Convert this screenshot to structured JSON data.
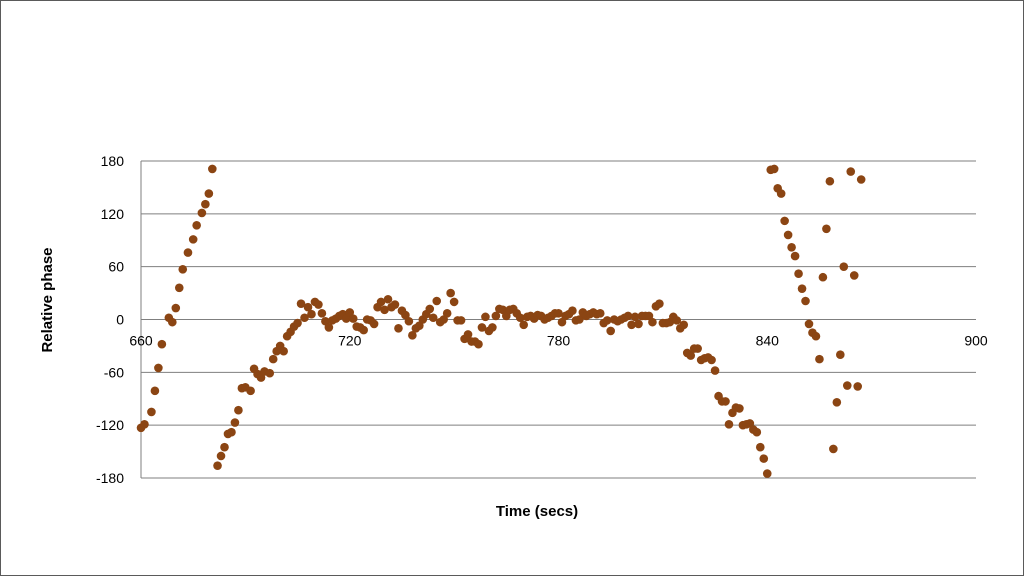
{
  "chart_data": {
    "type": "scatter",
    "xlabel": "Time (secs)",
    "ylabel": "Relative phase",
    "xlim": [
      660,
      900
    ],
    "ylim": [
      -180,
      180
    ],
    "x_ticks": [
      660,
      720,
      780,
      840,
      900
    ],
    "y_ticks": [
      180,
      120,
      60,
      0,
      -60,
      -120,
      -180
    ],
    "x_tick_labels": [
      "660",
      "720",
      "780",
      "840",
      "900"
    ],
    "y_tick_labels": [
      "180",
      "120",
      "60",
      "0",
      "-60",
      "-120",
      "-180"
    ],
    "grid": "horizontal",
    "marker_color": "#8B4513",
    "series": [
      {
        "points": [
          [
            660,
            -123
          ],
          [
            661,
            -119
          ],
          [
            663,
            -105
          ],
          [
            664,
            -81
          ],
          [
            665,
            -55
          ],
          [
            666,
            -28
          ],
          [
            668,
            2
          ],
          [
            669,
            -3
          ],
          [
            670,
            13
          ],
          [
            671,
            36
          ],
          [
            672,
            57
          ],
          [
            673.5,
            76
          ],
          [
            675,
            91
          ],
          [
            676,
            107
          ],
          [
            677.5,
            121
          ],
          [
            678.5,
            131
          ],
          [
            679.5,
            143
          ],
          [
            680.5,
            171
          ],
          [
            682,
            -166
          ],
          [
            683,
            -155
          ],
          [
            684,
            -145
          ],
          [
            685,
            -130
          ],
          [
            686,
            -128
          ],
          [
            687,
            -117
          ],
          [
            688,
            -103
          ],
          [
            689,
            -78
          ],
          [
            690,
            -77
          ],
          [
            691.5,
            -81
          ],
          [
            692.5,
            -56
          ],
          [
            693.5,
            -62
          ],
          [
            694.5,
            -66
          ],
          [
            695.5,
            -59
          ],
          [
            697,
            -61
          ],
          [
            698,
            -45
          ],
          [
            699,
            -36
          ],
          [
            700,
            -30
          ],
          [
            701,
            -36
          ],
          [
            702,
            -19
          ],
          [
            703,
            -14
          ],
          [
            704,
            -8
          ],
          [
            705,
            -4
          ],
          [
            706,
            18
          ],
          [
            707,
            2
          ],
          [
            708,
            14
          ],
          [
            709,
            6
          ],
          [
            710,
            20
          ],
          [
            711,
            17
          ],
          [
            712,
            7
          ],
          [
            713,
            -2
          ],
          [
            714,
            -9
          ],
          [
            715,
            -1
          ],
          [
            716,
            1
          ],
          [
            717,
            4
          ],
          [
            718,
            6
          ],
          [
            719,
            1
          ],
          [
            720,
            8
          ],
          [
            721,
            1
          ],
          [
            722,
            -8
          ],
          [
            723,
            -9
          ],
          [
            724,
            -12
          ],
          [
            725,
            0
          ],
          [
            726,
            -1
          ],
          [
            727,
            -5
          ],
          [
            728,
            14
          ],
          [
            729,
            20
          ],
          [
            730,
            11
          ],
          [
            731,
            23
          ],
          [
            732,
            14
          ],
          [
            733,
            17
          ],
          [
            734,
            -10
          ],
          [
            735,
            10
          ],
          [
            736,
            5
          ],
          [
            737,
            -2
          ],
          [
            738,
            -18
          ],
          [
            739,
            -10
          ],
          [
            740,
            -7
          ],
          [
            741,
            0
          ],
          [
            742,
            6
          ],
          [
            743,
            12
          ],
          [
            744,
            2
          ],
          [
            745,
            21
          ],
          [
            746,
            -3
          ],
          [
            747,
            0
          ],
          [
            748,
            7
          ],
          [
            749,
            30
          ],
          [
            750,
            20
          ],
          [
            751,
            -1
          ],
          [
            752,
            -1
          ],
          [
            753,
            -22
          ],
          [
            754,
            -17
          ],
          [
            755,
            -25
          ],
          [
            756,
            -25
          ],
          [
            757,
            -28
          ],
          [
            758,
            -9
          ],
          [
            759,
            3
          ],
          [
            760,
            -13
          ],
          [
            761,
            -9
          ],
          [
            762,
            4
          ],
          [
            763,
            12
          ],
          [
            764,
            11
          ],
          [
            765,
            4
          ],
          [
            766,
            11
          ],
          [
            767,
            12
          ],
          [
            768,
            7
          ],
          [
            769,
            2
          ],
          [
            770,
            -6
          ],
          [
            771,
            3
          ],
          [
            772,
            4
          ],
          [
            773,
            1
          ],
          [
            774,
            5
          ],
          [
            775,
            4
          ],
          [
            776,
            0
          ],
          [
            777,
            2
          ],
          [
            778,
            4
          ],
          [
            779,
            7
          ],
          [
            780,
            7
          ],
          [
            781,
            -3
          ],
          [
            782,
            4
          ],
          [
            783,
            6
          ],
          [
            784,
            10
          ],
          [
            785,
            -1
          ],
          [
            786,
            0
          ],
          [
            787,
            8
          ],
          [
            788,
            4
          ],
          [
            789,
            6
          ],
          [
            790,
            8
          ],
          [
            791,
            6
          ],
          [
            792,
            7
          ],
          [
            793,
            -4
          ],
          [
            794,
            -1
          ],
          [
            795,
            -13
          ],
          [
            796,
            0
          ],
          [
            797,
            -2
          ],
          [
            798,
            0
          ],
          [
            799,
            2
          ],
          [
            800,
            4
          ],
          [
            801,
            -6
          ],
          [
            802,
            3
          ],
          [
            803,
            -5
          ],
          [
            804,
            4
          ],
          [
            805,
            4
          ],
          [
            806,
            4
          ],
          [
            807,
            -3
          ],
          [
            808,
            15
          ],
          [
            809,
            18
          ],
          [
            810,
            -4
          ],
          [
            811,
            -4
          ],
          [
            812,
            -3
          ],
          [
            813,
            3
          ],
          [
            814,
            -1
          ],
          [
            815,
            -10
          ],
          [
            816,
            -6
          ],
          [
            817,
            -38
          ],
          [
            818,
            -41
          ],
          [
            819,
            -33
          ],
          [
            820,
            -33
          ],
          [
            821,
            -46
          ],
          [
            822,
            -44
          ],
          [
            823,
            -43
          ],
          [
            824,
            -46
          ],
          [
            825,
            -58
          ],
          [
            826,
            -87
          ],
          [
            827,
            -93
          ],
          [
            828,
            -93
          ],
          [
            829,
            -119
          ],
          [
            830,
            -106
          ],
          [
            831,
            -100
          ],
          [
            832,
            -101
          ],
          [
            833,
            -120
          ],
          [
            834,
            -119
          ],
          [
            835,
            -118
          ],
          [
            836,
            -125
          ],
          [
            837,
            -128
          ],
          [
            838,
            -145
          ],
          [
            839,
            -158
          ],
          [
            840,
            -175
          ],
          [
            841,
            170
          ],
          [
            842,
            171
          ],
          [
            843,
            149
          ],
          [
            844,
            143
          ],
          [
            845,
            112
          ],
          [
            846,
            96
          ],
          [
            847,
            82
          ],
          [
            848,
            72
          ],
          [
            849,
            52
          ],
          [
            850,
            35
          ],
          [
            851,
            21
          ],
          [
            852,
            -5
          ],
          [
            853,
            -15
          ],
          [
            854,
            -19
          ],
          [
            855,
            -45
          ],
          [
            856,
            48
          ],
          [
            857,
            103
          ],
          [
            858,
            157
          ],
          [
            859,
            -147
          ],
          [
            860,
            -94
          ],
          [
            861,
            -40
          ],
          [
            862,
            60
          ],
          [
            863,
            -75
          ],
          [
            864,
            168
          ],
          [
            865,
            50
          ],
          [
            866,
            -76
          ],
          [
            867,
            159
          ]
        ]
      }
    ]
  }
}
